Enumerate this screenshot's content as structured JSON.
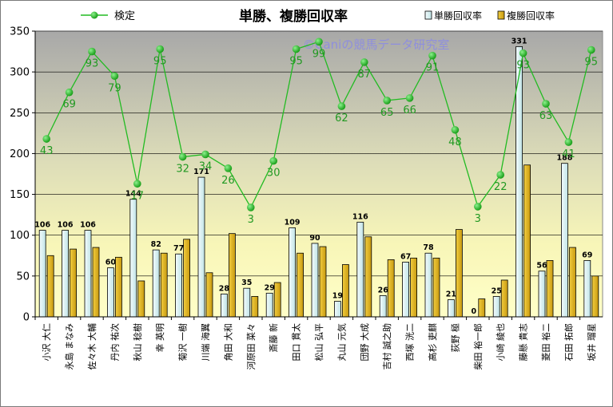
{
  "chart_data": {
    "type": "bar",
    "title": "単勝、複勝回収率",
    "watermark": "©Caniの競馬データ研究室",
    "categories": [
      "小沢 大仁",
      "永島 まなみ",
      "佐々木 大輔",
      "丹内 祐次",
      "秋山 稔樹",
      "幸 英明",
      "菊沢 一樹",
      "川端 海翼",
      "角田 大和",
      "河原田 菜々",
      "斎藤 新",
      "田口 貫太",
      "松山 弘平",
      "丸山 元気",
      "団野 大成",
      "吉村 誠之助",
      "西塚 洸二",
      "高杉 吏麒",
      "荻野 極",
      "柴田 裕一郎",
      "小崎 綾也",
      "藤懸 貴志",
      "菱田 裕二",
      "石田 拓郎",
      "坂井 瑠星"
    ],
    "series": [
      {
        "name": "単勝回収率",
        "color": "#ddf0f2",
        "values": [
          106,
          106,
          106,
          60,
          144,
          82,
          77,
          171,
          28,
          35,
          29,
          109,
          90,
          19,
          116,
          26,
          67,
          78,
          21,
          0,
          25,
          331,
          56,
          188,
          69
        ]
      },
      {
        "name": "複勝回収率",
        "color": "#e0b41c",
        "values": [
          75,
          83,
          85,
          73,
          44,
          78,
          95,
          54,
          102,
          25,
          42,
          78,
          86,
          64,
          98,
          70,
          72,
          72,
          107,
          22,
          45,
          186,
          69,
          85,
          50
        ]
      }
    ],
    "line_series": {
      "name": "検定",
      "color": "#22bb22",
      "values": [
        218,
        275,
        325,
        295,
        163,
        328,
        196,
        199,
        182,
        134,
        191,
        328,
        337,
        258,
        312,
        265,
        268,
        320,
        229,
        135,
        174,
        323,
        261,
        214,
        327
      ],
      "labels": [
        "43",
        "69",
        "93",
        "79",
        "17",
        "95",
        "32",
        "34",
        "26",
        "3",
        "30",
        "95",
        "99",
        "62",
        "87",
        "65",
        "66",
        "91",
        "48",
        "3",
        "22",
        "93",
        "63",
        "41",
        "95"
      ]
    },
    "y_ticks": [
      "0",
      "50",
      "100",
      "150",
      "200",
      "250",
      "300",
      "350"
    ],
    "ylim": [
      0,
      350
    ],
    "grid": true,
    "legend_position": "top"
  }
}
